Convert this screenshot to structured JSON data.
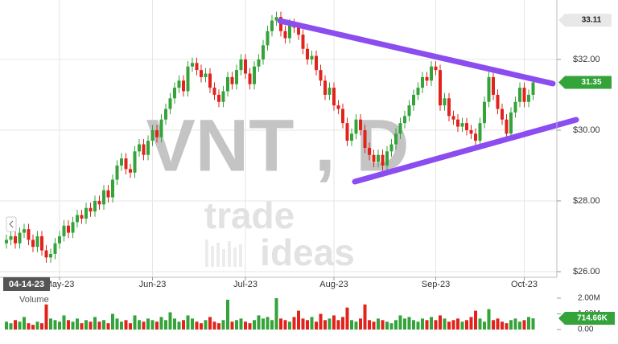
{
  "chart_data": {
    "type": "candlestick",
    "title": "VNT , D",
    "logo": [
      "trade",
      "ideas"
    ],
    "start_label": "04-14-23",
    "up_color": "#34a33a",
    "down_color": "#e0231c",
    "open": [
      26.8,
      26.9,
      27.0,
      26.8,
      27.1,
      27.2,
      26.9,
      26.7,
      27.0,
      26.6,
      26.4,
      26.5,
      26.8,
      27.0,
      27.3,
      27.1,
      27.4,
      27.6,
      27.5,
      27.8,
      27.7,
      28.0,
      27.9,
      28.3,
      28.1,
      28.6,
      29.0,
      29.2,
      28.9,
      28.8,
      29.4,
      29.6,
      29.3,
      29.7,
      30.0,
      29.8,
      30.3,
      30.6,
      30.9,
      31.2,
      31.4,
      31.1,
      31.8,
      31.9,
      31.7,
      31.5,
      31.6,
      31.2,
      31.0,
      30.8,
      31.1,
      31.5,
      31.3,
      31.7,
      32.0,
      31.6,
      31.3,
      31.8,
      32.0,
      32.4,
      32.8,
      33.1,
      33.2,
      32.8,
      32.6,
      33.0,
      32.9,
      32.7,
      32.3,
      32.0,
      32.1,
      31.7,
      31.4,
      31.0,
      31.2,
      30.7,
      30.6,
      30.2,
      29.7,
      29.9,
      30.3,
      30.0,
      29.5,
      29.3,
      29.1,
      29.3,
      29.0,
      29.4,
      29.6,
      29.9,
      30.2,
      30.4,
      30.7,
      31.0,
      31.2,
      31.5,
      31.4,
      31.8,
      31.7,
      30.7,
      30.9,
      30.4,
      30.3,
      30.1,
      30.2,
      30.0,
      29.9,
      29.7,
      30.2,
      30.8,
      31.5,
      31.0,
      30.6,
      30.3,
      29.9,
      30.5,
      30.8,
      31.2,
      30.8,
      31.0
    ],
    "high": [
      27.05,
      27.15,
      27.15,
      27.25,
      27.35,
      27.35,
      27.05,
      27.15,
      27.15,
      26.75,
      26.65,
      26.95,
      27.15,
      27.45,
      27.45,
      27.55,
      27.75,
      27.75,
      27.95,
      27.95,
      28.15,
      28.15,
      28.45,
      28.45,
      28.75,
      29.15,
      29.35,
      29.35,
      29.05,
      29.55,
      29.75,
      29.75,
      29.85,
      30.15,
      30.15,
      30.45,
      30.75,
      31.05,
      31.35,
      31.55,
      31.55,
      31.95,
      32.05,
      32.05,
      31.85,
      31.75,
      31.75,
      31.35,
      31.15,
      31.25,
      31.65,
      31.65,
      31.85,
      32.15,
      32.15,
      31.75,
      31.95,
      32.15,
      32.55,
      32.95,
      33.25,
      33.35,
      33.35,
      32.95,
      33.15,
      33.15,
      33.05,
      32.85,
      32.45,
      32.25,
      32.25,
      31.85,
      31.55,
      31.35,
      31.35,
      30.85,
      30.75,
      30.35,
      30.05,
      30.45,
      30.45,
      30.15,
      29.65,
      29.45,
      29.45,
      29.45,
      29.55,
      29.75,
      30.05,
      30.35,
      30.55,
      30.85,
      31.15,
      31.35,
      31.65,
      31.65,
      31.95,
      31.95,
      31.85,
      31.05,
      31.05,
      30.55,
      30.45,
      30.35,
      30.35,
      30.15,
      30.05,
      30.35,
      30.95,
      31.65,
      31.65,
      31.15,
      30.75,
      30.45,
      30.65,
      30.95,
      31.35,
      31.35,
      31.15,
      31.5
    ],
    "low": [
      26.65,
      26.75,
      26.65,
      26.65,
      26.95,
      26.75,
      26.55,
      26.55,
      26.45,
      26.25,
      26.25,
      26.35,
      26.65,
      26.85,
      26.95,
      26.95,
      27.25,
      27.35,
      27.35,
      27.55,
      27.55,
      27.75,
      27.75,
      27.95,
      27.95,
      28.45,
      28.85,
      28.75,
      28.65,
      28.65,
      29.25,
      29.15,
      29.15,
      29.55,
      29.65,
      29.65,
      30.15,
      30.45,
      30.75,
      31.05,
      30.95,
      30.95,
      31.65,
      31.55,
      31.35,
      31.35,
      31.05,
      30.85,
      30.65,
      30.65,
      30.95,
      31.15,
      31.15,
      31.55,
      31.45,
      31.15,
      31.15,
      31.65,
      31.85,
      32.25,
      32.65,
      32.95,
      32.65,
      32.45,
      32.45,
      32.75,
      32.55,
      32.15,
      31.85,
      31.85,
      31.55,
      31.25,
      30.85,
      30.85,
      30.55,
      30.45,
      30.05,
      29.55,
      29.55,
      29.75,
      29.85,
      29.35,
      29.15,
      28.95,
      28.95,
      28.85,
      28.85,
      29.25,
      29.45,
      29.75,
      30.05,
      30.25,
      30.55,
      30.85,
      31.05,
      31.25,
      31.25,
      31.55,
      30.55,
      30.55,
      30.25,
      30.15,
      29.95,
      29.95,
      29.85,
      29.75,
      29.55,
      29.55,
      30.05,
      30.65,
      30.85,
      30.45,
      30.15,
      29.75,
      29.75,
      30.35,
      30.65,
      30.65,
      30.65,
      30.85
    ],
    "close": [
      26.9,
      27.0,
      26.8,
      27.1,
      27.2,
      26.9,
      26.7,
      27.0,
      26.6,
      26.4,
      26.5,
      26.8,
      27.0,
      27.3,
      27.1,
      27.4,
      27.6,
      27.5,
      27.8,
      27.7,
      28.0,
      27.9,
      28.3,
      28.1,
      28.6,
      29.0,
      29.2,
      28.9,
      28.8,
      29.4,
      29.6,
      29.3,
      29.7,
      30.0,
      29.8,
      30.3,
      30.6,
      30.9,
      31.2,
      31.4,
      31.1,
      31.8,
      31.9,
      31.7,
      31.5,
      31.6,
      31.2,
      31.0,
      30.8,
      31.1,
      31.5,
      31.3,
      31.7,
      32.0,
      31.6,
      31.3,
      31.8,
      32.0,
      32.4,
      32.8,
      33.1,
      33.2,
      32.8,
      32.6,
      33.0,
      32.9,
      32.7,
      32.3,
      32.0,
      32.1,
      31.7,
      31.4,
      31.0,
      31.2,
      30.7,
      30.6,
      30.2,
      29.7,
      29.9,
      30.3,
      30.0,
      29.5,
      29.3,
      29.1,
      29.3,
      29.0,
      29.4,
      29.6,
      29.9,
      30.2,
      30.4,
      30.7,
      31.0,
      31.2,
      31.5,
      31.4,
      31.8,
      31.7,
      30.7,
      30.9,
      30.4,
      30.3,
      30.1,
      30.2,
      30.0,
      29.9,
      29.7,
      30.2,
      30.8,
      31.5,
      31.0,
      30.6,
      30.3,
      29.9,
      30.5,
      30.8,
      31.2,
      30.8,
      31.0,
      31.35
    ],
    "ylim": [
      25.84,
      33.68
    ],
    "yticks": [
      {
        "value": 26,
        "label": "$26.00"
      },
      {
        "value": 28,
        "label": "$28.00"
      },
      {
        "value": 30,
        "label": "$30.00"
      },
      {
        "value": 32,
        "label": "$32.00"
      }
    ],
    "price_markers": [
      33.11,
      31.35
    ],
    "xticks": [
      {
        "value": 12,
        "label": "May-23"
      },
      {
        "value": 33,
        "label": "Jun-23"
      },
      {
        "value": 54,
        "label": "Jul-23"
      },
      {
        "value": 74,
        "label": "Aug-23"
      },
      {
        "value": 97,
        "label": "Sep-23"
      },
      {
        "value": 117,
        "label": "Oct-23"
      }
    ],
    "volume": {
      "label": "Volume",
      "values": [
        0.5,
        0.4,
        0.6,
        0.5,
        0.8,
        0.4,
        0.3,
        0.5,
        0.4,
        1.6,
        0.7,
        0.6,
        0.5,
        0.9,
        0.6,
        0.5,
        0.7,
        0.4,
        0.6,
        0.5,
        0.8,
        0.5,
        0.6,
        0.4,
        1.0,
        0.7,
        0.5,
        0.6,
        0.4,
        0.9,
        0.6,
        0.5,
        0.7,
        0.6,
        0.5,
        0.8,
        0.6,
        1.1,
        0.7,
        0.5,
        0.6,
        0.9,
        0.7,
        0.5,
        0.4,
        0.6,
        0.8,
        0.5,
        0.4,
        0.6,
        1.9,
        0.5,
        0.6,
        0.7,
        0.5,
        0.4,
        0.6,
        0.9,
        0.7,
        0.8,
        0.6,
        2.0,
        0.7,
        0.6,
        0.5,
        0.8,
        1.2,
        0.7,
        0.6,
        0.8,
        0.5,
        1.0,
        0.6,
        0.7,
        0.9,
        0.6,
        0.8,
        1.4,
        0.6,
        0.5,
        0.7,
        1.6,
        0.6,
        0.5,
        0.7,
        0.6,
        0.5,
        0.4,
        0.6,
        0.9,
        0.7,
        0.8,
        0.6,
        0.5,
        0.7,
        0.6,
        0.8,
        0.6,
        0.9,
        0.7,
        0.5,
        0.6,
        0.7,
        0.5,
        0.6,
        0.8,
        1.2,
        0.7,
        0.5,
        1.3,
        0.6,
        0.7,
        0.5,
        0.4,
        0.6,
        0.7,
        0.5,
        0.6,
        0.8,
        0.71466
      ],
      "ylim": [
        0,
        2.1
      ],
      "yticks": [
        {
          "value": 0,
          "label": "0.00"
        },
        {
          "value": 1,
          "label": "1.00M"
        },
        {
          "value": 2,
          "label": "2.00M"
        }
      ],
      "last_value_label": "714.66K"
    }
  }
}
